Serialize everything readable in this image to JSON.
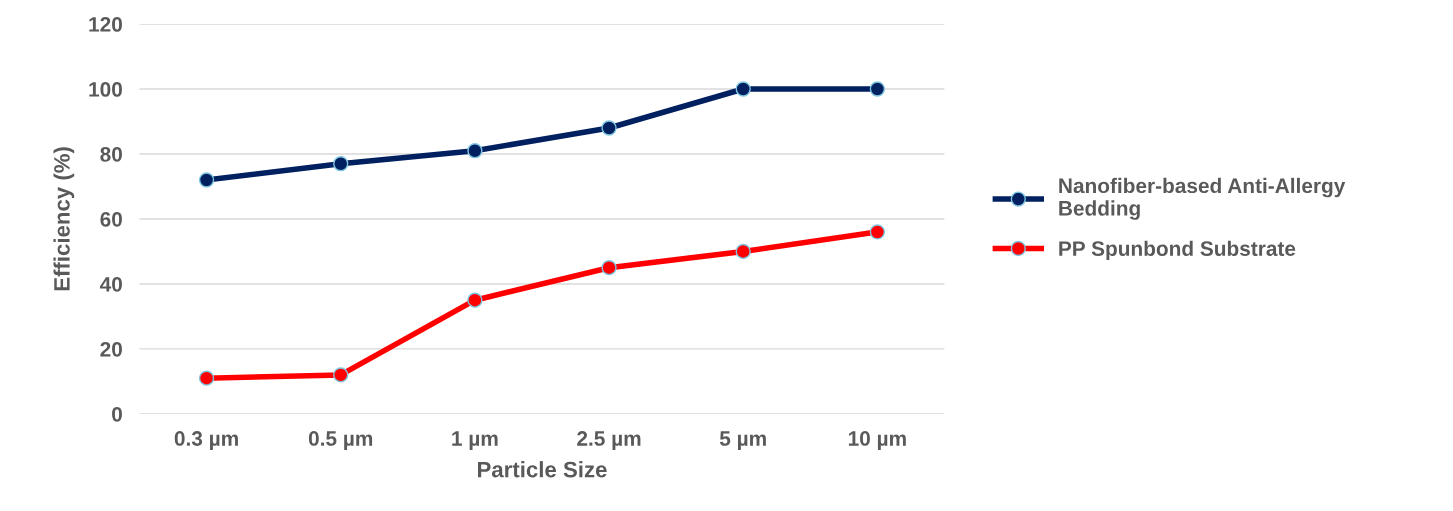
{
  "chart_data": {
    "type": "line",
    "xlabel": "Particle Size",
    "ylabel": "Efficiency (%)",
    "categories": [
      "0.3 µm",
      "0.5 µm",
      "1 µm",
      "2.5 µm",
      "5 µm",
      "10 µm"
    ],
    "series": [
      {
        "name": "Nanofiber-based Anti-Allergy Bedding",
        "color": "#002060",
        "values": [
          72,
          77,
          81,
          88,
          100,
          100
        ]
      },
      {
        "name": "PP Spunbond Substrate",
        "color": "#ff0000",
        "values": [
          11,
          12,
          35,
          45,
          50,
          56
        ]
      }
    ],
    "ylim": [
      0,
      120
    ],
    "yticks": [
      0,
      20,
      40,
      60,
      80,
      100,
      120
    ],
    "grid": "y",
    "legend": "right",
    "marker": "circle",
    "line_style": "solid"
  }
}
